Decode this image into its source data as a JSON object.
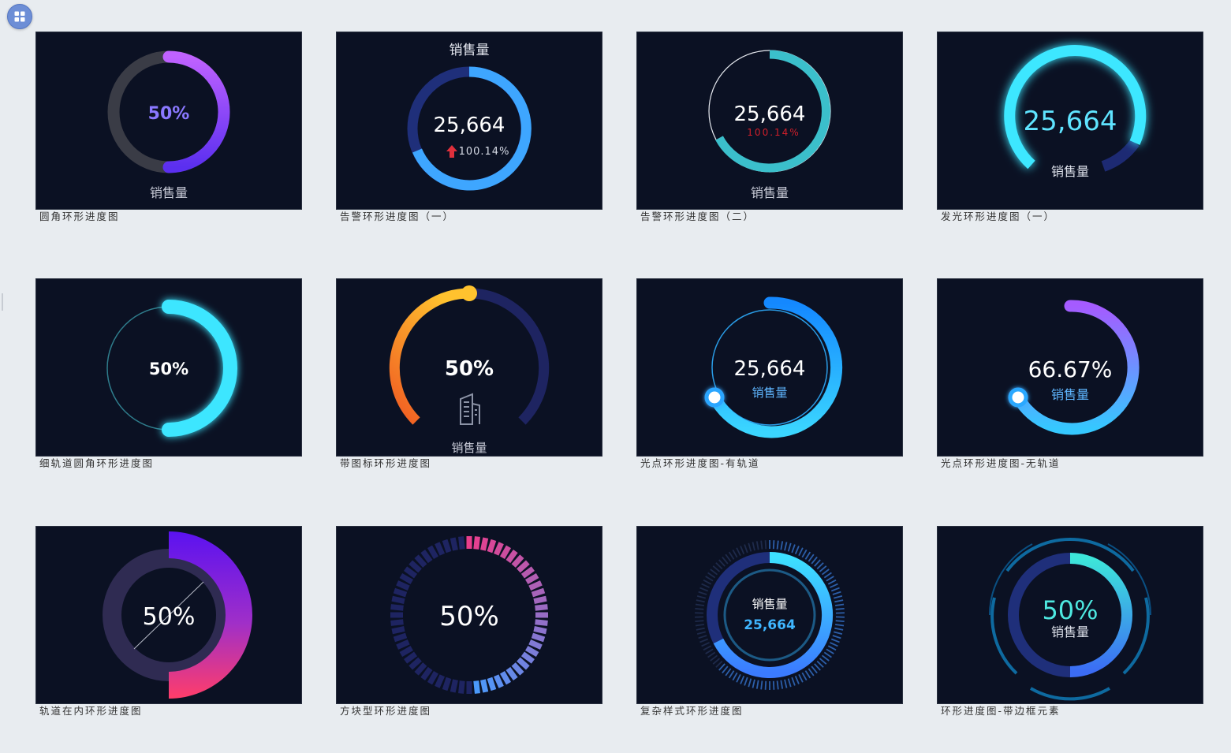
{
  "toolbar": {
    "app_icon": "grid-apps-icon"
  },
  "cards": [
    {
      "caption": "圆角环形进度图",
      "value": "50%",
      "label": "销售量",
      "progress": 0.5
    },
    {
      "caption": "告警环形进度图（一）",
      "title": "销售量",
      "value": "25,664",
      "rate": "100.14%",
      "progress": 0.64,
      "trend_icon": "arrow-up-icon"
    },
    {
      "caption": "告警环形进度图（二）",
      "value": "25,664",
      "rate": "100.14%",
      "label": "销售量",
      "progress": 0.62
    },
    {
      "caption": "发光环形进度图（一）",
      "value": "25,664",
      "label": "销售量",
      "progress": 0.86
    },
    {
      "caption": "细轨道圆角环形进度图",
      "value": "50%",
      "progress": 0.5
    },
    {
      "caption": "带图标环形进度图",
      "value": "50%",
      "label": "销售量",
      "progress": 0.5,
      "icon": "building-icon"
    },
    {
      "caption": "光点环形进度图-有轨道",
      "value": "25,664",
      "label": "销售量",
      "progress": 0.62
    },
    {
      "caption": "光点环形进度图-无轨道",
      "value": "66.67%",
      "label": "销售量",
      "progress": 0.6667
    },
    {
      "caption": "轨道在内环形进度图",
      "value": "50%",
      "progress": 0.5
    },
    {
      "caption": "方块型环形进度图",
      "value": "50%",
      "progress": 0.5
    },
    {
      "caption": "复杂样式环形进度图",
      "label": "销售量",
      "value": "25,664",
      "progress": 0.62
    },
    {
      "caption": "环形进度图-带边框元素",
      "value": "50%",
      "label": "销售量",
      "progress": 0.5
    }
  ],
  "colors": {
    "tile_bg": "#0b1123",
    "page_bg": "#e8ecf0",
    "alert_red": "#e0303c",
    "cyan": "#3ce7ff",
    "blue": "#3ea6ff",
    "purple": "#9b5cff"
  }
}
